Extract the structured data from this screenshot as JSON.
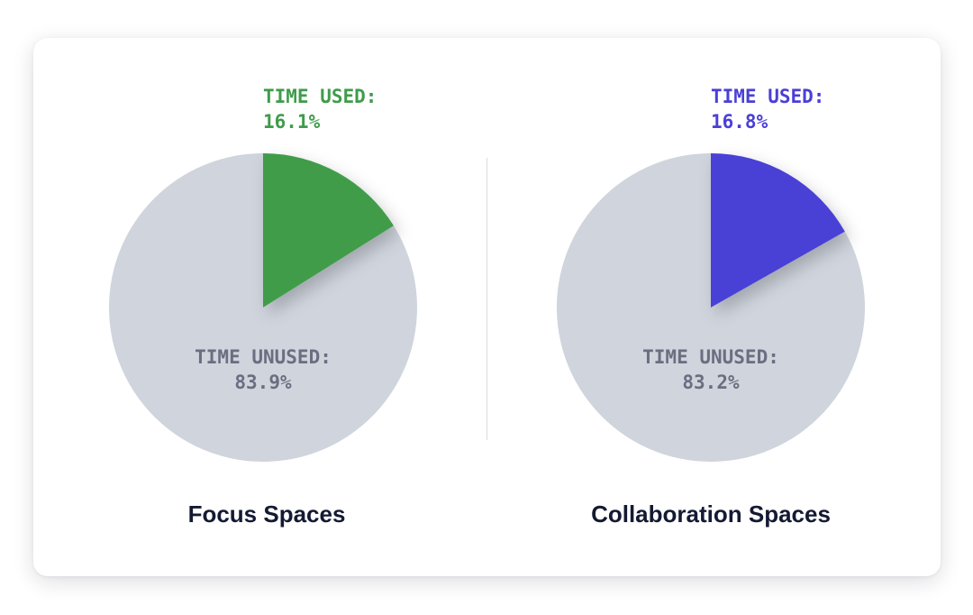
{
  "chart_data": [
    {
      "type": "pie",
      "title": "Focus Spaces",
      "slices": [
        {
          "label": "TIME USED:",
          "value": 16.1,
          "display": "16.1%",
          "color": "#3f9c4a"
        },
        {
          "label": "TIME UNUSED:",
          "value": 83.9,
          "display": "83.9%",
          "color": "#cfd4dd"
        }
      ]
    },
    {
      "type": "pie",
      "title": "Collaboration Spaces",
      "slices": [
        {
          "label": "TIME USED:",
          "value": 16.8,
          "display": "16.8%",
          "color": "#4a3fd6"
        },
        {
          "label": "TIME UNUSED:",
          "value": 83.2,
          "display": "83.2%",
          "color": "#cfd4dd"
        }
      ]
    }
  ],
  "colors": {
    "unused_text": "#6b6e80",
    "title_text": "#141a33"
  }
}
